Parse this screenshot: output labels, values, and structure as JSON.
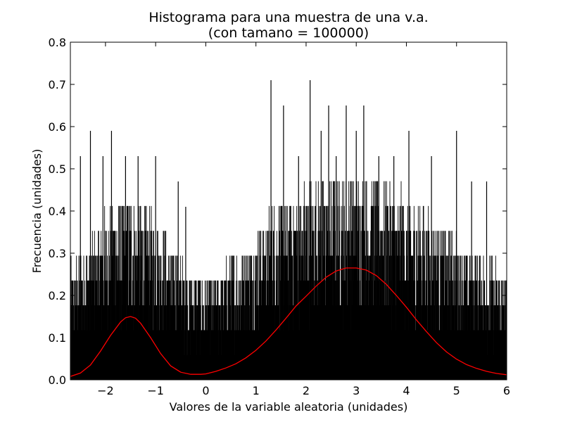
{
  "chart_data": {
    "type": "bar",
    "title": "Histograma para una muestra de una v.a.",
    "subtitle": "(con tamano = 100000)",
    "xlabel": "Valores de la variable aleatoria (unidades)",
    "ylabel": "Frecuencia (unidades)",
    "xlim": [
      -2.7,
      6.0
    ],
    "ylim": [
      0.0,
      0.8
    ],
    "x_ticks": [
      -2,
      -1,
      0,
      1,
      2,
      3,
      4,
      5,
      6
    ],
    "x_tick_labels": [
      "−2",
      "−1",
      "0",
      "1",
      "2",
      "3",
      "4",
      "5",
      "6"
    ],
    "y_ticks": [
      0.0,
      0.1,
      0.2,
      0.3,
      0.4,
      0.5,
      0.6,
      0.7,
      0.8
    ],
    "y_tick_labels": [
      "0.0",
      "0.1",
      "0.2",
      "0.3",
      "0.4",
      "0.5",
      "0.6",
      "0.7",
      "0.8"
    ],
    "grid": false,
    "histogram": {
      "color": "#000000",
      "profile_x": [
        -2.7,
        -2.3,
        -2.0,
        -1.7,
        -1.5,
        -1.3,
        -1.0,
        -0.7,
        -0.4,
        -0.2,
        0.0,
        0.3,
        0.7,
        1.0,
        1.3,
        1.7,
        2.0,
        2.4,
        2.8,
        3.0,
        3.3,
        3.7,
        4.0,
        4.4,
        4.8,
        5.0,
        5.3,
        5.6,
        6.0
      ],
      "profile_y": [
        0.22,
        0.28,
        0.33,
        0.36,
        0.37,
        0.35,
        0.32,
        0.27,
        0.22,
        0.2,
        0.2,
        0.22,
        0.26,
        0.3,
        0.34,
        0.37,
        0.39,
        0.4,
        0.41,
        0.41,
        0.41,
        0.39,
        0.36,
        0.33,
        0.3,
        0.28,
        0.26,
        0.24,
        0.22
      ],
      "spikes": [
        {
          "x": -2.5,
          "y": 0.53
        },
        {
          "x": -2.3,
          "y": 0.59
        },
        {
          "x": -2.05,
          "y": 0.53
        },
        {
          "x": -1.88,
          "y": 0.59
        },
        {
          "x": -1.6,
          "y": 0.53
        },
        {
          "x": -1.35,
          "y": 0.53
        },
        {
          "x": -1.0,
          "y": 0.53
        },
        {
          "x": -0.55,
          "y": 0.47
        },
        {
          "x": -0.4,
          "y": 0.41
        },
        {
          "x": 1.3,
          "y": 0.71
        },
        {
          "x": 1.55,
          "y": 0.65
        },
        {
          "x": 1.85,
          "y": 0.53
        },
        {
          "x": 2.08,
          "y": 0.71
        },
        {
          "x": 2.3,
          "y": 0.59
        },
        {
          "x": 2.45,
          "y": 0.65
        },
        {
          "x": 2.6,
          "y": 0.53
        },
        {
          "x": 2.8,
          "y": 0.65
        },
        {
          "x": 3.0,
          "y": 0.59
        },
        {
          "x": 3.15,
          "y": 0.65
        },
        {
          "x": 3.45,
          "y": 0.53
        },
        {
          "x": 3.75,
          "y": 0.53
        },
        {
          "x": 4.05,
          "y": 0.59
        },
        {
          "x": 4.5,
          "y": 0.53
        },
        {
          "x": 5.0,
          "y": 0.59
        },
        {
          "x": 5.3,
          "y": 0.47
        },
        {
          "x": 5.6,
          "y": 0.47
        }
      ]
    },
    "series": [
      {
        "type": "line",
        "color": "#ff0000",
        "x": [
          -2.7,
          -2.5,
          -2.3,
          -2.1,
          -1.9,
          -1.7,
          -1.6,
          -1.5,
          -1.4,
          -1.3,
          -1.1,
          -0.9,
          -0.7,
          -0.5,
          -0.3,
          -0.1,
          0.0,
          0.2,
          0.4,
          0.6,
          0.8,
          1.0,
          1.2,
          1.4,
          1.6,
          1.8,
          2.0,
          2.2,
          2.4,
          2.6,
          2.8,
          3.0,
          3.2,
          3.4,
          3.6,
          3.8,
          4.0,
          4.2,
          4.4,
          4.6,
          4.8,
          5.0,
          5.2,
          5.4,
          5.6,
          5.8,
          6.0
        ],
        "y": [
          0.008,
          0.016,
          0.035,
          0.068,
          0.105,
          0.137,
          0.147,
          0.15,
          0.146,
          0.134,
          0.1,
          0.062,
          0.033,
          0.018,
          0.013,
          0.013,
          0.014,
          0.02,
          0.028,
          0.038,
          0.052,
          0.07,
          0.092,
          0.118,
          0.146,
          0.175,
          0.198,
          0.222,
          0.243,
          0.258,
          0.265,
          0.265,
          0.26,
          0.247,
          0.226,
          0.2,
          0.172,
          0.142,
          0.114,
          0.088,
          0.066,
          0.049,
          0.036,
          0.027,
          0.02,
          0.015,
          0.012
        ]
      }
    ]
  }
}
